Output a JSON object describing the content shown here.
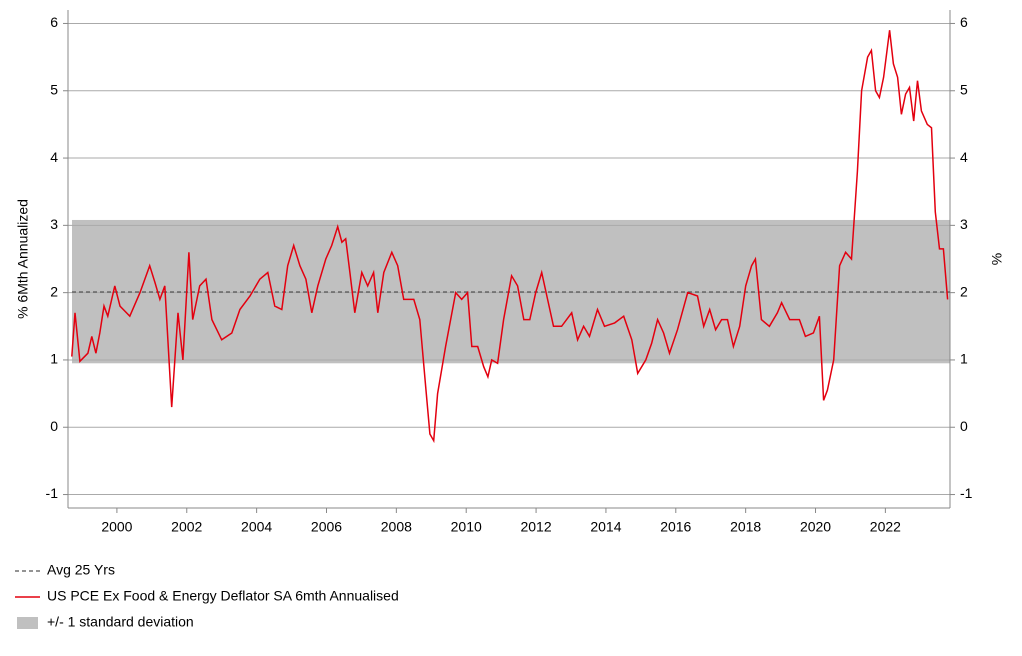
{
  "chart_data": {
    "type": "line",
    "y_label": "% 6Mth Annualized",
    "y2_label": "%",
    "xlim": [
      1998.6,
      2023.85
    ],
    "xticks": [
      2000,
      2002,
      2004,
      2006,
      2008,
      2010,
      2012,
      2014,
      2016,
      2018,
      2020,
      2022
    ],
    "ylim": [
      -1.2,
      6.2
    ],
    "yticks": [
      -1,
      0,
      1,
      2,
      3,
      4,
      5,
      6
    ],
    "y2lim": [
      -1.2,
      6.2
    ],
    "y2ticks": [
      -1,
      0,
      1,
      2,
      3,
      4,
      5,
      6
    ],
    "grid": true,
    "average": {
      "name": "Avg 25 Yrs",
      "value": 2.01,
      "color": "#555555"
    },
    "band": {
      "name": "+/- 1 standard deviation",
      "lower": 0.95,
      "upper": 3.08,
      "color": "#c0c0c0"
    },
    "x": [
      1998.71,
      1998.8,
      1998.94,
      1999.17,
      1999.28,
      1999.4,
      1999.51,
      1999.63,
      1999.74,
      1999.94,
      2000.09,
      2000.37,
      2000.66,
      2000.94,
      2001.09,
      2001.23,
      2001.37,
      2001.57,
      2001.75,
      2001.89,
      2002.06,
      2002.17,
      2002.37,
      2002.55,
      2002.72,
      2003.0,
      2003.29,
      2003.52,
      2003.81,
      2004.09,
      2004.32,
      2004.52,
      2004.72,
      2004.89,
      2005.06,
      2005.24,
      2005.41,
      2005.58,
      2005.75,
      2005.98,
      2006.15,
      2006.32,
      2006.44,
      2006.55,
      2006.67,
      2006.81,
      2007.01,
      2007.18,
      2007.35,
      2007.47,
      2007.64,
      2007.87,
      2008.04,
      2008.21,
      2008.5,
      2008.67,
      2008.84,
      2008.96,
      2009.07,
      2009.18,
      2009.41,
      2009.7,
      2009.87,
      2010.04,
      2010.16,
      2010.33,
      2010.5,
      2010.62,
      2010.73,
      2010.9,
      2011.07,
      2011.3,
      2011.47,
      2011.65,
      2011.82,
      2011.99,
      2012.16,
      2012.33,
      2012.5,
      2012.73,
      2013.02,
      2013.19,
      2013.36,
      2013.53,
      2013.76,
      2013.96,
      2014.25,
      2014.51,
      2014.74,
      2014.91,
      2015.14,
      2015.31,
      2015.48,
      2015.65,
      2015.82,
      2016.05,
      2016.34,
      2016.62,
      2016.8,
      2016.97,
      2017.14,
      2017.31,
      2017.48,
      2017.65,
      2017.83,
      2018.0,
      2018.17,
      2018.28,
      2018.45,
      2018.68,
      2018.91,
      2019.03,
      2019.26,
      2019.54,
      2019.71,
      2019.94,
      2020.11,
      2020.23,
      2020.34,
      2020.52,
      2020.69,
      2020.86,
      2021.03,
      2021.2,
      2021.32,
      2021.49,
      2021.6,
      2021.72,
      2021.83,
      2021.95,
      2022.12,
      2022.23,
      2022.35,
      2022.46,
      2022.58,
      2022.69,
      2022.81,
      2022.92,
      2023.03,
      2023.2,
      2023.32,
      2023.43,
      2023.55,
      2023.66,
      2023.78
    ],
    "series": [
      {
        "name": "US PCE Ex Food & Energy Deflator SA 6mth Annualised",
        "color": "#e3000f",
        "values": [
          1.05,
          1.7,
          0.98,
          1.1,
          1.35,
          1.1,
          1.4,
          1.8,
          1.65,
          2.1,
          1.8,
          1.65,
          2.0,
          2.4,
          2.15,
          1.9,
          2.1,
          0.3,
          1.7,
          1.0,
          2.6,
          1.6,
          2.1,
          2.2,
          1.6,
          1.3,
          1.4,
          1.75,
          1.95,
          2.2,
          2.3,
          1.8,
          1.75,
          2.4,
          2.7,
          2.4,
          2.2,
          1.7,
          2.1,
          2.5,
          2.7,
          2.98,
          2.75,
          2.8,
          2.3,
          1.7,
          2.3,
          2.1,
          2.3,
          1.7,
          2.3,
          2.6,
          2.4,
          1.9,
          1.9,
          1.6,
          0.6,
          -0.1,
          -0.2,
          0.5,
          1.2,
          2.0,
          1.9,
          2.0,
          1.2,
          1.2,
          0.9,
          0.75,
          1.0,
          0.95,
          1.6,
          2.25,
          2.1,
          1.6,
          1.6,
          2.0,
          2.3,
          1.9,
          1.5,
          1.5,
          1.7,
          1.3,
          1.5,
          1.35,
          1.75,
          1.5,
          1.55,
          1.65,
          1.3,
          0.8,
          1.0,
          1.25,
          1.6,
          1.4,
          1.1,
          1.45,
          2.0,
          1.95,
          1.5,
          1.75,
          1.45,
          1.6,
          1.6,
          1.2,
          1.5,
          2.1,
          2.4,
          2.5,
          1.6,
          1.5,
          1.7,
          1.85,
          1.6,
          1.6,
          1.35,
          1.4,
          1.65,
          0.4,
          0.55,
          1.0,
          2.4,
          2.6,
          2.5,
          3.8,
          5.0,
          5.5,
          5.6,
          5.0,
          4.9,
          5.2,
          5.9,
          5.4,
          5.2,
          4.65,
          4.95,
          5.05,
          4.55,
          5.15,
          4.7,
          4.5,
          4.45,
          3.2,
          2.65,
          2.65,
          1.9
        ]
      }
    ]
  }
}
